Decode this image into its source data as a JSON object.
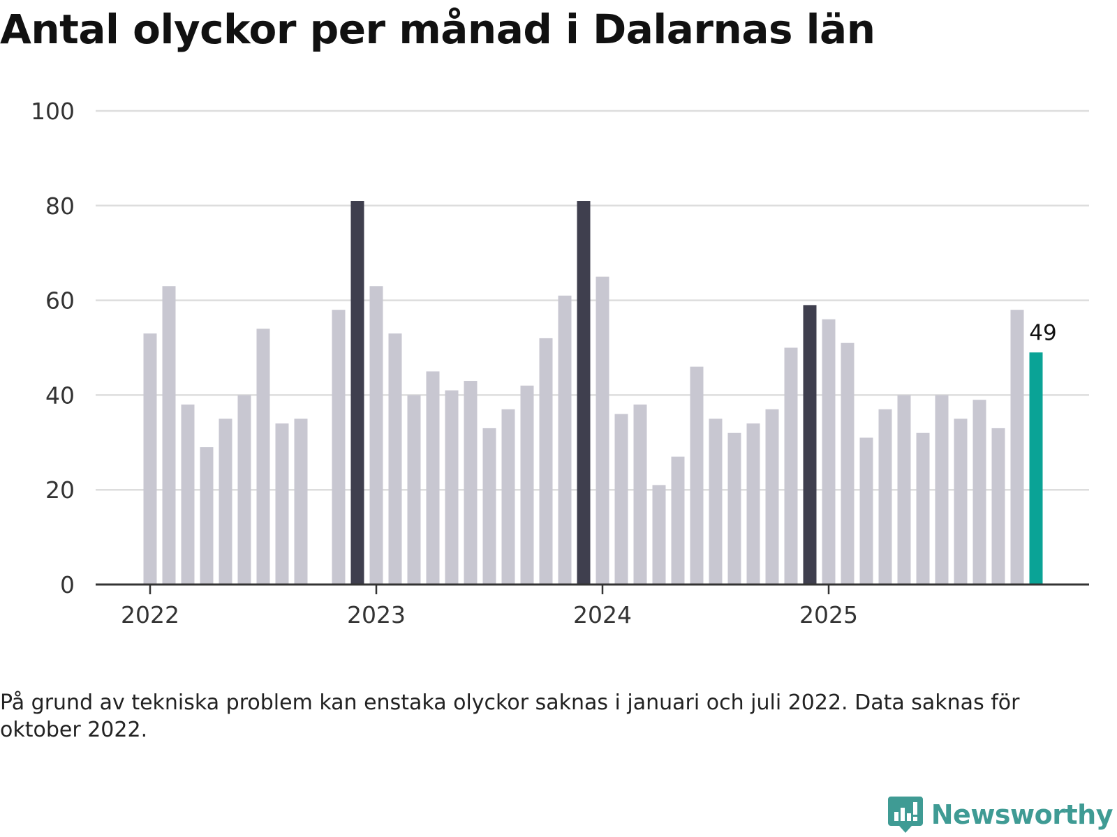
{
  "title": "Antal olyckor per månad i Dalarnas län",
  "note": "På grund av tekniska problem kan enstaka olyckor saknas i januari och juli 2022. Data saknas för oktober 2022.",
  "brand": {
    "name": "Newsworthy",
    "icon": "newsworthy-logo-icon"
  },
  "colors": {
    "bar_default": "#c8c7d1",
    "bar_december": "#3f3f4e",
    "bar_latest": "#0aa396",
    "grid": "#dddddd",
    "axis": "#333333",
    "brand": "#3f9b94"
  },
  "chart_data": {
    "type": "bar",
    "title": "Antal olyckor per månad i Dalarnas län",
    "xlabel": "",
    "ylabel": "",
    "ylim": [
      0,
      100
    ],
    "yticks": [
      0,
      20,
      40,
      60,
      80,
      100
    ],
    "xticks": [
      {
        "label": "2022",
        "index": 0
      },
      {
        "label": "2023",
        "index": 12
      },
      {
        "label": "2024",
        "index": 24
      },
      {
        "label": "2025",
        "index": 36
      }
    ],
    "categories": [
      "2022-01",
      "2022-02",
      "2022-03",
      "2022-04",
      "2022-05",
      "2022-06",
      "2022-07",
      "2022-08",
      "2022-09",
      "2022-10",
      "2022-11",
      "2022-12",
      "2023-01",
      "2023-02",
      "2023-03",
      "2023-04",
      "2023-05",
      "2023-06",
      "2023-07",
      "2023-08",
      "2023-09",
      "2023-10",
      "2023-11",
      "2023-12",
      "2024-01",
      "2024-02",
      "2024-03",
      "2024-04",
      "2024-05",
      "2024-06",
      "2024-07",
      "2024-08",
      "2024-09",
      "2024-10",
      "2024-11",
      "2024-12",
      "2025-01",
      "2025-02",
      "2025-03",
      "2025-04",
      "2025-05",
      "2025-06",
      "2025-07",
      "2025-08",
      "2025-09",
      "2025-10",
      "2025-11",
      "2025-12"
    ],
    "values": [
      53,
      63,
      38,
      29,
      35,
      40,
      54,
      34,
      35,
      null,
      58,
      81,
      63,
      53,
      40,
      45,
      41,
      43,
      33,
      37,
      42,
      52,
      61,
      81,
      65,
      36,
      38,
      21,
      27,
      46,
      35,
      32,
      34,
      37,
      50,
      59,
      56,
      51,
      31,
      37,
      40,
      32,
      40,
      35,
      39,
      33,
      58,
      49
    ],
    "highlight": {
      "december_indices": [
        11,
        23,
        35
      ],
      "latest_index": 47,
      "latest_label": "49"
    }
  }
}
